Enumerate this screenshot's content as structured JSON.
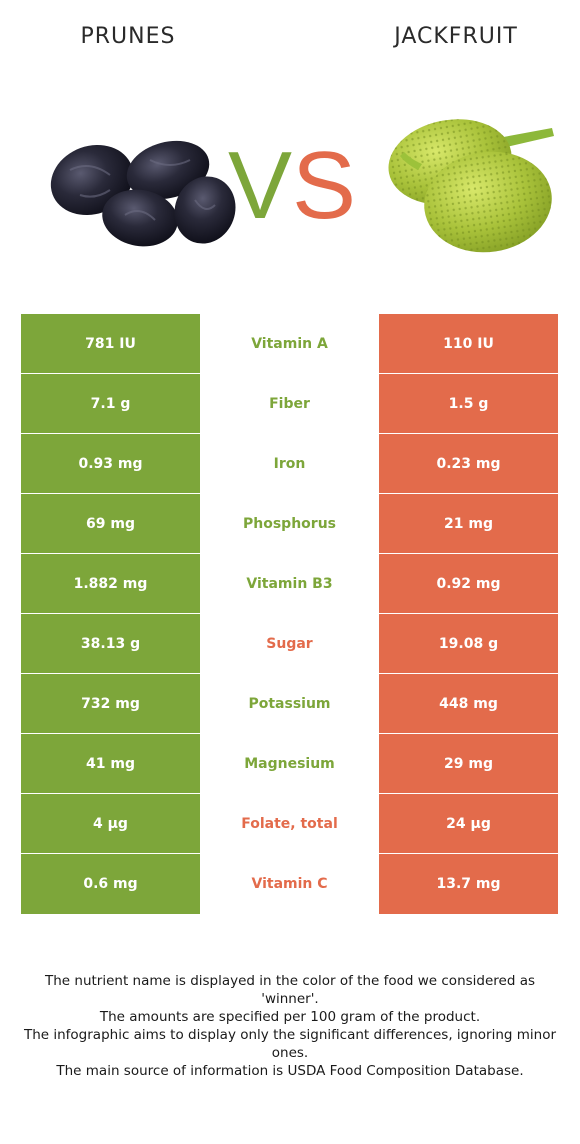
{
  "header": {
    "left_title": "PRUNES",
    "right_title": "JACKFRUIT",
    "vs_v": "V",
    "vs_s": "S"
  },
  "colors": {
    "left_winner": "#7da63a",
    "right_winner": "#e36b4b"
  },
  "rows": [
    {
      "left": "781 IU",
      "nutrient": "Vitamin A",
      "right": "110 IU",
      "winner": "left"
    },
    {
      "left": "7.1 g",
      "nutrient": "Fiber",
      "right": "1.5 g",
      "winner": "left"
    },
    {
      "left": "0.93 mg",
      "nutrient": "Iron",
      "right": "0.23 mg",
      "winner": "left"
    },
    {
      "left": "69 mg",
      "nutrient": "Phosphorus",
      "right": "21 mg",
      "winner": "left"
    },
    {
      "left": "1.882 mg",
      "nutrient": "Vitamin B3",
      "right": "0.92 mg",
      "winner": "left"
    },
    {
      "left": "38.13 g",
      "nutrient": "Sugar",
      "right": "19.08 g",
      "winner": "right"
    },
    {
      "left": "732 mg",
      "nutrient": "Potassium",
      "right": "448 mg",
      "winner": "left"
    },
    {
      "left": "41 mg",
      "nutrient": "Magnesium",
      "right": "29 mg",
      "winner": "left"
    },
    {
      "left": "4 µg",
      "nutrient": "Folate, total",
      "right": "24 µg",
      "winner": "right"
    },
    {
      "left": "0.6 mg",
      "nutrient": "Vitamin C",
      "right": "13.7 mg",
      "winner": "right"
    }
  ],
  "footnote": {
    "line1": "The nutrient name is displayed in the color of the food we considered as 'winner'.",
    "line2": "The amounts are specified per 100 gram of the product.",
    "line3": "The infographic aims to display only the significant differences, ignoring minor ones.",
    "line4": "The main source of information is USDA Food Composition Database."
  },
  "icons": {
    "left_image": "prunes-image",
    "right_image": "jackfruit-image"
  }
}
